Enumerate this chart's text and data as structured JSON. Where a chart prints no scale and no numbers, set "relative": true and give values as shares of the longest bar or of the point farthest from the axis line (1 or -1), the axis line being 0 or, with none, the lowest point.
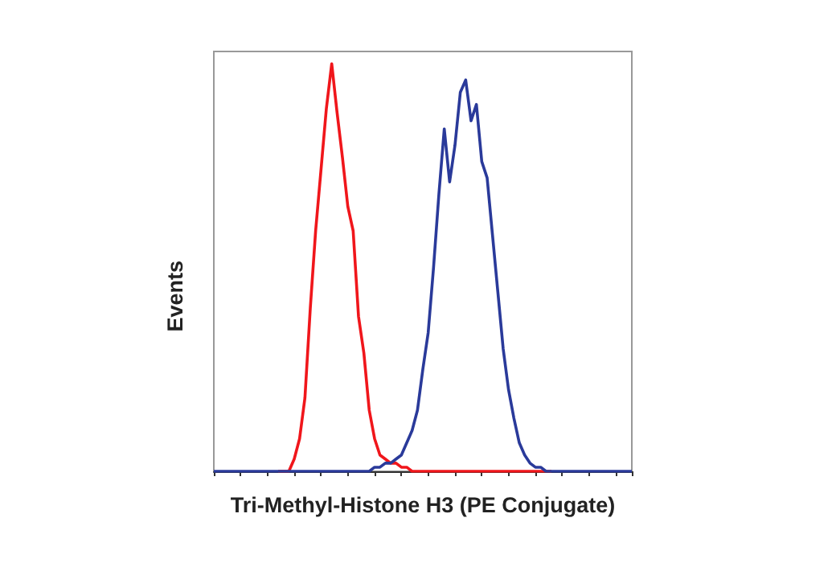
{
  "chart_data": {
    "type": "line",
    "relative": true,
    "xlabel": "Tri-Methyl-Histone H3 (PE Conjugate)",
    "ylabel": "Events",
    "marker": "none",
    "line_style": "solid",
    "grid": false,
    "categories": [
      null,
      null,
      null,
      null,
      null,
      null,
      null,
      null,
      null,
      null,
      null,
      null,
      null,
      null,
      null,
      null,
      null,
      null,
      null,
      null,
      null,
      null,
      null,
      null,
      null,
      null,
      null,
      null,
      null,
      null,
      null,
      null,
      null,
      null,
      null,
      null,
      null,
      null,
      null,
      null,
      null,
      null,
      null,
      null,
      null,
      null,
      null,
      null,
      null,
      null,
      null,
      null,
      null,
      null,
      null,
      null,
      null,
      null,
      null,
      null,
      null,
      null,
      null,
      null,
      null,
      null,
      null,
      null,
      null,
      null,
      null,
      null,
      null,
      null,
      null,
      null,
      null,
      null,
      null
    ],
    "series": [
      {
        "color": "#f0161b",
        "values": [
          null,
          null,
          null,
          null,
          null,
          null,
          null,
          null,
          null,
          null,
          null,
          null,
          0,
          0,
          0,
          0.03,
          0.08,
          0.18,
          0.4,
          0.59,
          0.74,
          0.89,
          1,
          0.88,
          0.77,
          0.65,
          0.59,
          0.38,
          0.29,
          0.15,
          0.08,
          0.04,
          0.03,
          0.02,
          0.02,
          0.01,
          0.01,
          0,
          0,
          0,
          0,
          0,
          0,
          0,
          0,
          0,
          0,
          0,
          0,
          0,
          0,
          0,
          0,
          0,
          0,
          0,
          0,
          0,
          0,
          0,
          0,
          0,
          0,
          0,
          null,
          null,
          null,
          null,
          null,
          null,
          null,
          null,
          null,
          null,
          null,
          null,
          null,
          null,
          null
        ]
      },
      {
        "color": "#2a3a9a",
        "values": [
          0,
          0,
          0,
          0,
          0,
          0,
          0,
          0,
          0,
          0,
          0,
          0,
          0,
          0,
          0,
          0,
          0,
          0,
          0,
          0,
          0,
          0,
          0,
          0,
          0,
          0,
          0,
          0,
          0,
          0,
          0.01,
          0.01,
          0.02,
          0.02,
          0.03,
          0.04,
          0.07,
          0.1,
          0.15,
          0.25,
          0.34,
          0.5,
          0.68,
          0.84,
          0.71,
          0.8,
          0.93,
          0.96,
          0.86,
          0.9,
          0.76,
          0.72,
          0.58,
          0.44,
          0.3,
          0.2,
          0.13,
          0.07,
          0.04,
          0.02,
          0.01,
          0.01,
          0,
          0,
          0,
          0,
          0,
          0,
          0,
          0,
          0,
          0,
          0,
          0,
          0,
          0,
          0,
          0,
          0
        ]
      }
    ]
  }
}
